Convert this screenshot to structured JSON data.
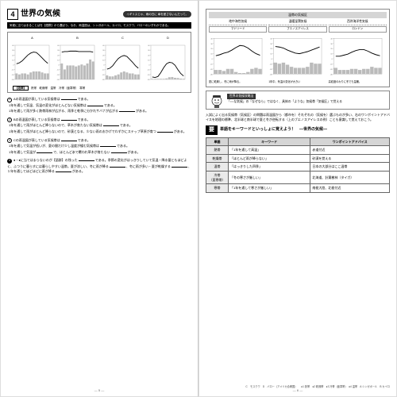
{
  "left": {
    "section_num": "4",
    "title": "世界の気候",
    "bubble": "イギリスじゃ、雨の日に\n傘を差さないんだって。",
    "blackbar": "気候に当てはまることばを【語群】から選ぼう。なお、雨温図は、シンガポール、カイロ、モスクワ、バローのいずれかである。",
    "chart_labels": [
      "A",
      "B",
      "C",
      "D"
    ],
    "charts": [
      {
        "temp": [
          2,
          4,
          8,
          14,
          20,
          24,
          26,
          25,
          20,
          14,
          8,
          3
        ],
        "rain": [
          6,
          5,
          6,
          6,
          5,
          7,
          8,
          8,
          8,
          7,
          6,
          6
        ],
        "color": "#444"
      },
      {
        "temp": [
          26,
          27,
          27,
          28,
          28,
          28,
          27,
          27,
          27,
          27,
          27,
          26
        ],
        "rain": [
          16,
          10,
          14,
          14,
          14,
          13,
          14,
          15,
          14,
          16,
          20,
          18
        ],
        "color": "#444"
      },
      {
        "temp": [
          -9,
          -7,
          -2,
          6,
          13,
          17,
          19,
          17,
          11,
          5,
          -2,
          -7
        ],
        "rain": [
          4,
          3,
          3,
          4,
          5,
          7,
          8,
          7,
          6,
          6,
          5,
          5
        ],
        "color": "#444"
      },
      {
        "temp": [
          -25,
          -26,
          -24,
          -16,
          -6,
          2,
          5,
          4,
          -1,
          -10,
          -18,
          -23
        ],
        "rain": [
          0.6,
          0.6,
          0.6,
          0.6,
          0.6,
          1,
          2.2,
          2.4,
          1.6,
          1.4,
          0.8,
          0.6
        ],
        "color": "#444"
      }
    ],
    "axis": {
      "temp_min": -30,
      "temp_max": 40,
      "rain_max": 24
    },
    "hint_label": "【語群】",
    "hint_text": "熱帯　乾燥帯　温帯　冷帯（亜寒帯）　寒帯",
    "questions": [
      {
        "n": "1",
        "filled": false,
        "lines": [
          "Aの雨温図が表している気候帯は＿＿＿＿＿である。",
          "1年を通して気温、気温の変化がほとんどない気候帯は＿＿＿＿＿である。",
          "1年を通して雨が多く熱帯雨林が広がる、雨季と乾季に分かれサバナが広がる＿＿＿＿＿がある。"
        ]
      },
      {
        "n": "2",
        "filled": false,
        "lines": [
          "Bの雨温図が表している気候帯は＿＿＿＿＿である。",
          "1年を通して雨がほとんど降らないので、草木が育たない気候帯は＿＿＿＿＿である。",
          "1年を通して雨がほとんど降らないので、砂漠となる、少ない雨のおかげでわずかにステップ草原が育つ＿＿＿＿＿がある。"
        ]
      },
      {
        "n": "3",
        "filled": false,
        "lines": [
          "Cの雨温図が表している気候帯は＿＿＿＿＿である。",
          "1年を通して気温が低いが、夏の間だけ少し温度が緩む気候帯は＿＿＿＿＿である。",
          "1年を通して気温が＿＿＿＿で、ほとんど氷で覆われ草木が育たない＿＿＿＿＿がある。"
        ]
      },
      {
        "n": "4",
        "filled": true,
        "lines": [
          "●・●に当てはまらないのが【語群】の残った＿＿＿＿＿である。季節の変化がはっきりしていて気温・降水量ともほどよく、ふつうに暮らすには暮らしやすい温帯。夏が涼しい、冬に雨が降る＿＿＿＿＿、冬に雨が多い・夏が乾燥する＿＿＿＿＿、１年を通してほどほどに雨が降る＿＿＿＿＿がある。"
        ]
      }
    ],
    "page_num": "— 5 —"
  },
  "right": {
    "panel_hdr": "温帯の気候区",
    "cells": [
      {
        "hdr": "地中海性気候",
        "city": "マドリード",
        "temp": [
          6,
          8,
          11,
          13,
          17,
          22,
          26,
          25,
          21,
          15,
          10,
          7
        ],
        "rain": [
          4,
          4,
          3,
          5,
          5,
          2,
          1,
          1,
          2,
          5,
          6,
          5
        ],
        "cap": "夏に乾燥し、冬に雨が降る。"
      },
      {
        "hdr": "温暖湿潤気候",
        "city": "ブエノスアイレス",
        "temp": [
          24,
          23,
          21,
          17,
          14,
          11,
          10,
          12,
          14,
          17,
          20,
          23
        ],
        "rain": [
          11,
          10,
          11,
          9,
          7,
          6,
          6,
          6,
          7,
          11,
          10,
          10
        ],
        "cap": "1年中、気温の変化が大きい"
      },
      {
        "hdr": "西岸海洋性気候",
        "city": "ロンドン",
        "temp": [
          5,
          5,
          7,
          9,
          13,
          16,
          18,
          18,
          15,
          11,
          8,
          6
        ],
        "rain": [
          6,
          4,
          4,
          4,
          5,
          5,
          4,
          5,
          5,
          7,
          6,
          6
        ],
        "cap": "高緯度のわりに冬でも温暖。"
      }
    ],
    "tip_title": "世界の気候攻略法",
    "tip_text": "「○○な気候」の「なぜなら」ではなく、具体の「ような」気候帯「気候区」で覚える",
    "para": "入試によく出る気候帯（気候区）の問題は雨温図から（都市を）それぞれの（気候を）選ぶものが多い、右のワンポイントアドバイスを地理の標準、北半球と南半球で夏と冬が逆転する（上のブエノスアイレスの例）ことも意識して覚えておこう。",
    "sec_box": "要",
    "sec_title": "単語をキーワードといっしょに覚えよう！　―世界の気候―",
    "table": {
      "cols": [
        "単語",
        "キーワード",
        "ワンポイントアドバイス"
      ],
      "rows": [
        [
          "熱帯",
          "「1年を通して高温」",
          "赤道付近"
        ],
        [
          "乾燥帯",
          "「ほとんど雨が降らない」",
          "砂漠を覚える"
        ],
        [
          "温帯",
          "「はっきりした四季」",
          "日本の大部分はここ温帯"
        ],
        [
          "冷帯\n（亜寒帯）",
          "「冬の寒さが厳しい」",
          "北海道、針葉樹林（タイガ）"
        ],
        [
          "寒帯",
          "「1年を通して寒さが厳しい」",
          "南極大陸、北極付近"
        ]
      ]
    },
    "footnote": "C　モスクワ　D　バロー（アメリカ合衆国）　　●1 熱帯　●2 乾燥帯　●3 冷帯（亜寒帯）　●4 温帯　A シンガポール　B カイロ",
    "page_num": "— 6 —"
  }
}
